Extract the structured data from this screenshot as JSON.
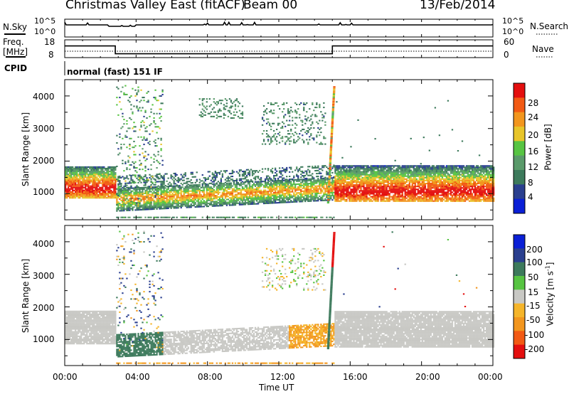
{
  "header": {
    "station": "Christmas Valley East (fitACF)",
    "beam": "Beam 00",
    "date": "13/Feb/2014"
  },
  "noise_panel": {
    "left_label": "N.Sky",
    "right_label": "N.Search",
    "left_ticks": [
      "10^5",
      "10^0"
    ],
    "right_ticks": [
      "10^5",
      "10^0"
    ]
  },
  "freq_panel": {
    "left_label_1": "Freq.",
    "left_label_2": "[MHz]",
    "right_label": "Nave",
    "left_ticks": [
      "18",
      "8"
    ],
    "right_ticks": [
      "60",
      "0"
    ],
    "cpid_label": "CPID",
    "cpid_text": "normal (fast) 151 IF"
  },
  "colors": {
    "power_scale": [
      "#0a1fd6",
      "#2a3f8f",
      "#3d7a5c",
      "#5a9a6a",
      "#57c442",
      "#e8c52a",
      "#f2961e",
      "#f25a14",
      "#e40f0f"
    ],
    "velocity_scale": [
      "#0a1fd6",
      "#2a3f8f",
      "#3d7a5c",
      "#57c442",
      "#c8c8c4",
      "#f5b52a",
      "#f2961e",
      "#f25a14",
      "#e40f0f"
    ],
    "ground_scatter": "#c8c8c4"
  },
  "chart_data": [
    {
      "type": "line",
      "title": "N.Sky / N.Search",
      "x": [
        "00:00",
        "24:00"
      ],
      "series": [
        {
          "name": "N.Sky",
          "values": "near-constant noise level with small spikes"
        },
        {
          "name": "N.Search",
          "values": "near-constant noise level"
        }
      ]
    },
    {
      "type": "line",
      "xlabel": "Time UT",
      "series": [
        {
          "name": "Freq. [MHz]",
          "x": [
            "00:00",
            "02:50",
            "02:50",
            "15:00",
            "15:00",
            "24:00"
          ],
          "values": [
            15,
            15,
            10,
            10,
            15,
            15
          ]
        },
        {
          "name": "Nave",
          "x": [
            "00:00",
            "24:00"
          ],
          "values": [
            10,
            10
          ]
        }
      ],
      "ylim_left": [
        8,
        18
      ],
      "ylim_right": [
        0,
        60
      ]
    },
    {
      "type": "heatmap",
      "ylabel": "Slant Range [km]",
      "xlabel": "Time UT",
      "colorbar_label": "Power [dB]",
      "colorbar_ticks": [
        4,
        8,
        12,
        16,
        20,
        24,
        28
      ],
      "xlim": [
        "00:00",
        "24:00"
      ],
      "ylim": [
        200,
        4500
      ],
      "yticks": [
        1000,
        2000,
        3000,
        4000
      ],
      "features": [
        {
          "desc": "strong echo band",
          "time": [
            "00:00",
            "02:50"
          ],
          "range": [
            900,
            1700
          ],
          "power": 28
        },
        {
          "desc": "scattered echoes",
          "time": [
            "02:50",
            "05:30"
          ],
          "range": [
            600,
            4000
          ],
          "power": 12
        },
        {
          "desc": "descending echo band",
          "time": [
            "03:00",
            "14:30"
          ],
          "range": [
            600,
            1300
          ],
          "power": 20
        },
        {
          "desc": "high-range patches",
          "time": [
            "07:30",
            "10:00"
          ],
          "range": [
            3300,
            3900
          ],
          "power": 8
        },
        {
          "desc": "high-range patches",
          "time": [
            "11:00",
            "14:30"
          ],
          "range": [
            2600,
            3700
          ],
          "power": 8
        },
        {
          "desc": "strong echo band",
          "time": [
            "15:00",
            "24:00"
          ],
          "range": [
            800,
            1800
          ],
          "power": 28
        },
        {
          "desc": "near-range line",
          "time": [
            "02:50",
            "24:00"
          ],
          "range": [
            250,
            300
          ],
          "power": 8
        }
      ]
    },
    {
      "type": "heatmap",
      "ylabel": "Slant Range [km]",
      "xlabel": "Time UT",
      "colorbar_label": "Velocity [m s^-1]",
      "colorbar_ticks": [
        200,
        100,
        50,
        15,
        -15,
        -50,
        -100,
        -200
      ],
      "xlim": [
        "00:00",
        "24:00"
      ],
      "ylim": [
        200,
        4500
      ],
      "yticks": [
        1000,
        2000,
        3000,
        4000
      ],
      "features": [
        {
          "desc": "ground scatter",
          "time": [
            "00:00",
            "02:50"
          ],
          "range": [
            900,
            1800
          ],
          "velocity": 0
        },
        {
          "desc": "ground scatter",
          "time": [
            "15:00",
            "24:00"
          ],
          "range": [
            800,
            1800
          ],
          "velocity": 0
        },
        {
          "desc": "ground scatter band",
          "time": [
            "05:00",
            "13:30"
          ],
          "range": [
            900,
            1150
          ],
          "velocity": 0
        },
        {
          "desc": "positive velocity",
          "time": [
            "02:50",
            "05:30"
          ],
          "range": [
            600,
            900
          ],
          "velocity": 50
        },
        {
          "desc": "negative velocity",
          "time": [
            "12:30",
            "14:30"
          ],
          "range": [
            700,
            1300
          ],
          "velocity": -50
        },
        {
          "desc": "negative velocity line",
          "time": [
            "03:00",
            "24:00"
          ],
          "range": [
            250,
            350
          ],
          "velocity": -50
        }
      ]
    }
  ],
  "time_axis": {
    "ticks": [
      "00:00",
      "04:00",
      "08:00",
      "12:00",
      "16:00",
      "20:00",
      "00:00"
    ],
    "label": "Time UT"
  },
  "range_axis": {
    "label": "Slant Range [km]",
    "ticks": [
      "1000",
      "2000",
      "3000",
      "4000"
    ]
  },
  "power_colorbar": {
    "label": "Power [dB]",
    "ticks": [
      "28",
      "24",
      "20",
      "16",
      "12",
      "8",
      "4"
    ]
  },
  "velocity_colorbar": {
    "label_prefix": "Velocity [m s",
    "label_sup": "-1",
    "label_suffix": "]",
    "ticks": [
      "200",
      "100",
      "50",
      "15",
      "-15",
      "-50",
      "-100",
      "-200"
    ]
  }
}
